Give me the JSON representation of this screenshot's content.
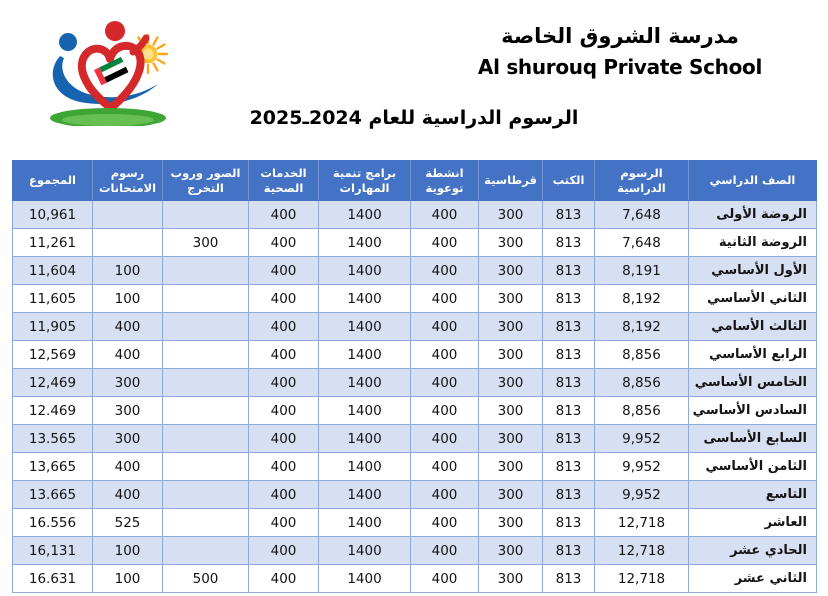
{
  "letterhead": {
    "school_name_ar": "مدرسة الشروق الخاصة",
    "school_name_en": "Al shurouq Private School",
    "logo_colors": {
      "heart_red": "#d4282a",
      "figure_blue": "#1663b0",
      "sun_orange": "#f6a81c",
      "grass_green": "#3fa535",
      "flag_green": "#00843d",
      "flag_red": "#ef3340",
      "flag_black": "#000000"
    }
  },
  "document_title": "الرسوم الدراسية للعام 2024ـ2025",
  "table": {
    "style": {
      "header_bg": "#4472c4",
      "band_bg": "#d6e0f2",
      "border": "#8eaadb"
    },
    "columns": [
      "الصف الدراسي",
      "الرسوم الدراسية",
      "الكتب",
      "قرطاسية",
      "انشطة توعوية",
      "برامج تنمية المهارات",
      "الخدمات الصحية",
      "الصور وروب التخرج",
      "رسوم الامتحانات",
      "المجموع"
    ],
    "rows": [
      [
        "الروضة الأولى",
        "7,648",
        "813",
        "300",
        "400",
        "1400",
        "400",
        "",
        "",
        "10,961"
      ],
      [
        "الروضة الثانية",
        "7,648",
        "813",
        "300",
        "400",
        "1400",
        "400",
        "300",
        "",
        "11,261"
      ],
      [
        "الأول الأساسي",
        "8,191",
        "813",
        "300",
        "400",
        "1400",
        "400",
        "",
        "100",
        "11,604"
      ],
      [
        "الثاني الأساسي",
        "8,192",
        "813",
        "300",
        "400",
        "1400",
        "400",
        "",
        "100",
        "11,605"
      ],
      [
        "الثالث الأسامي",
        "8,192",
        "813",
        "300",
        "400",
        "1400",
        "400",
        "",
        "400",
        "11,905"
      ],
      [
        "الرابع الأساسي",
        "8,856",
        "813",
        "300",
        "400",
        "1400",
        "400",
        "",
        "400",
        "12,569"
      ],
      [
        "الخامس الأساسي",
        "8,856",
        "813",
        "300",
        "400",
        "1400",
        "400",
        "",
        "300",
        "12,469"
      ],
      [
        "السادس الأساسي",
        "8,856",
        "813",
        "300",
        "400",
        "1400",
        "400",
        "",
        "300",
        "12.469"
      ],
      [
        "السابع الأساسى",
        "9,952",
        "813",
        "300",
        "400",
        "1400",
        "400",
        "",
        "300",
        "13.565"
      ],
      [
        "الثامن الأساسي",
        "9,952",
        "813",
        "300",
        "400",
        "1400",
        "400",
        "",
        "400",
        "13,665"
      ],
      [
        "التاسع",
        "9,952",
        "813",
        "300",
        "400",
        "1400",
        "400",
        "",
        "400",
        "13.665"
      ],
      [
        "العاشر",
        "12,718",
        "813",
        "300",
        "400",
        "1400",
        "400",
        "",
        "525",
        "16.556"
      ],
      [
        "الحادي عشر",
        "12,718",
        "813",
        "300",
        "400",
        "1400",
        "400",
        "",
        "100",
        "16,131"
      ],
      [
        "الثاني عشر",
        "12,718",
        "813",
        "300",
        "400",
        "1400",
        "400",
        "500",
        "100",
        "16.631"
      ]
    ]
  }
}
